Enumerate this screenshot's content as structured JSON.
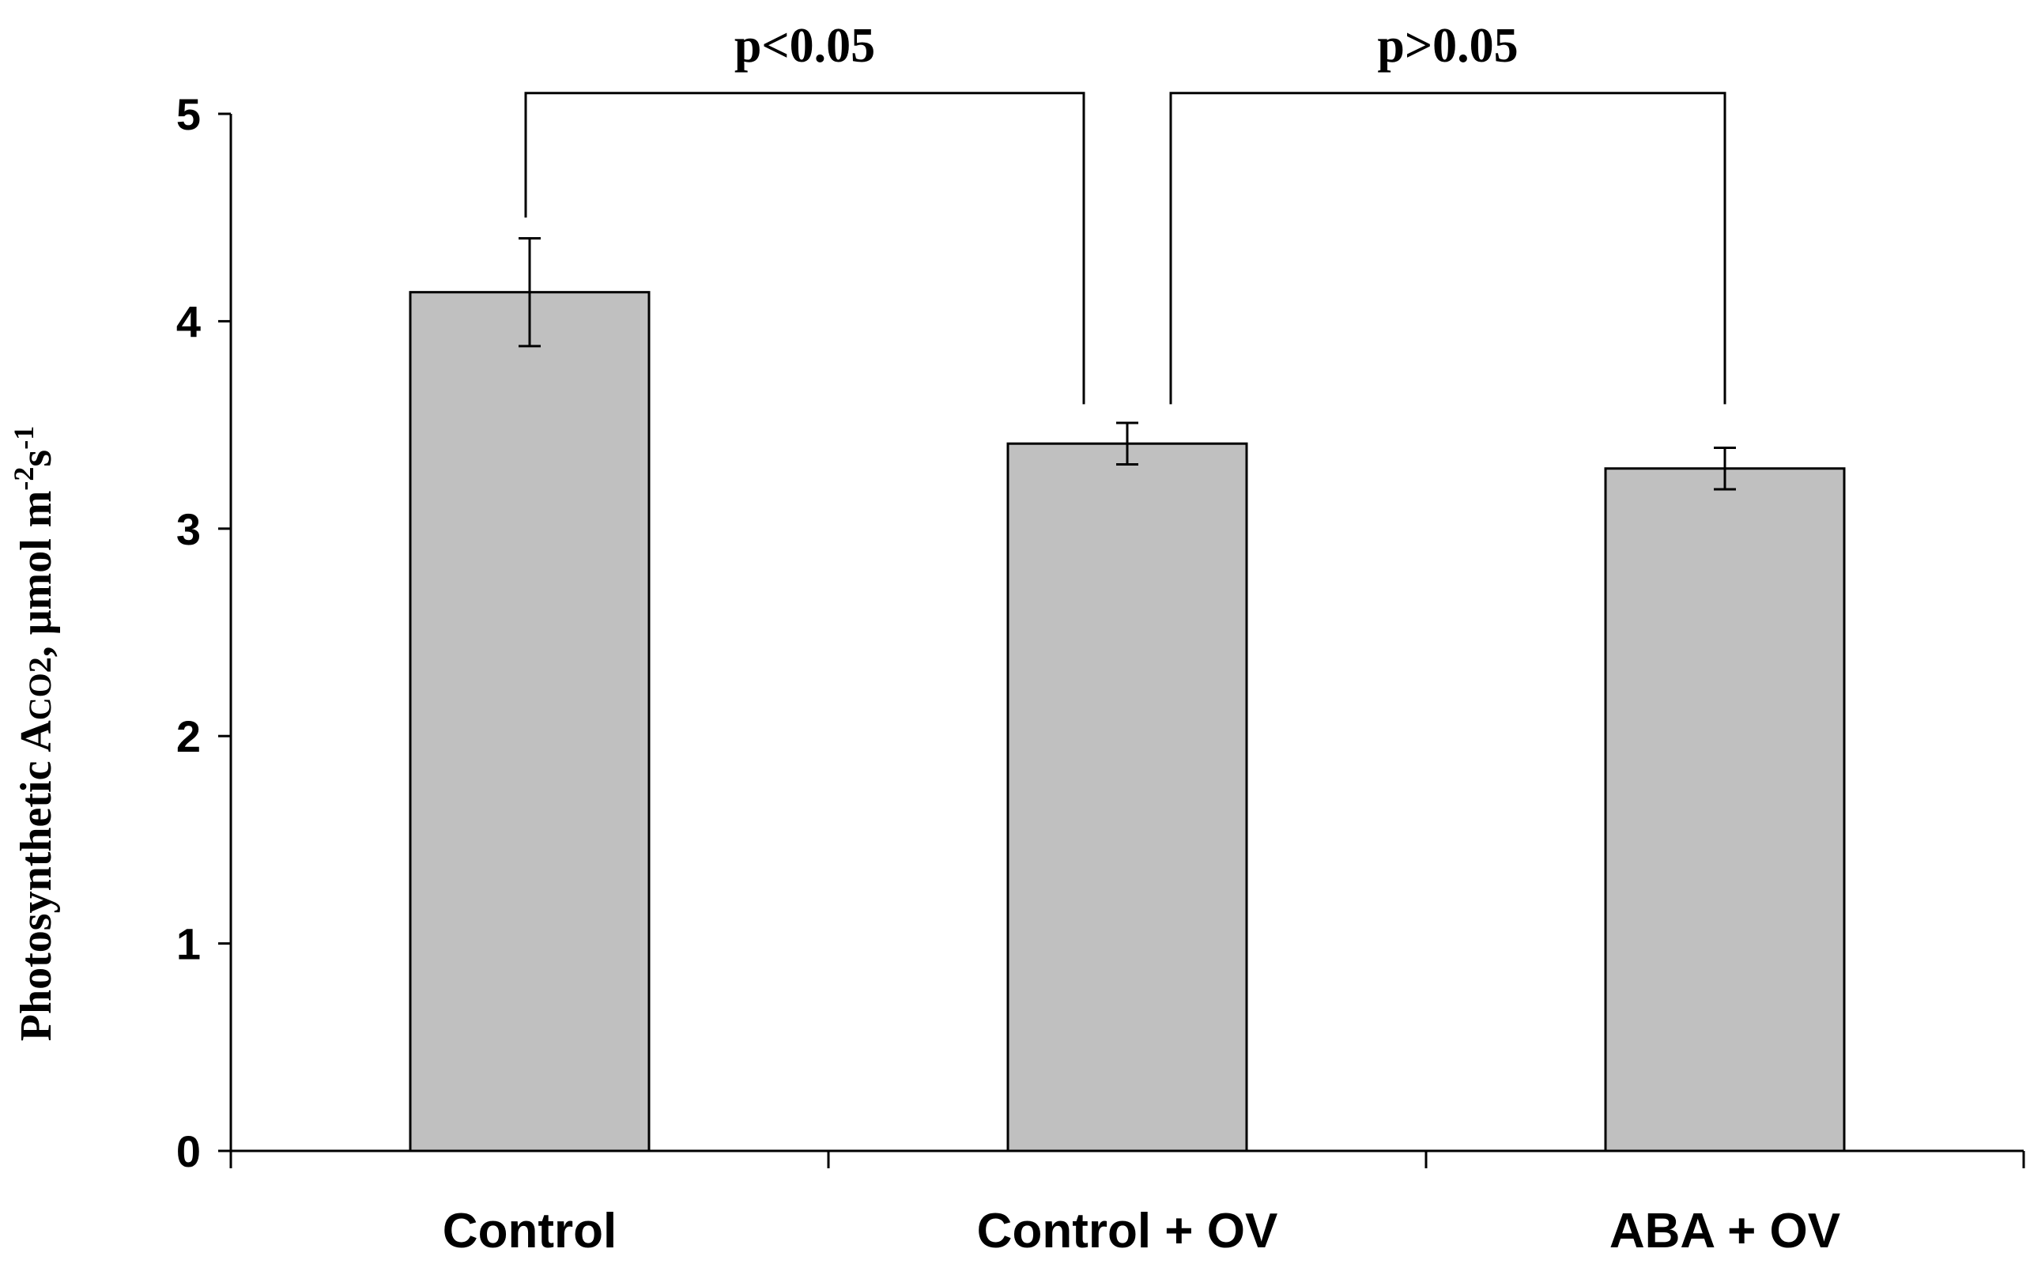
{
  "chart_data": {
    "type": "bar",
    "title": "",
    "xlabel": "",
    "ylabel": {
      "prefix": "Photosynthetic A",
      "subscript": "CO2",
      "unit_prefix": ", μmol m",
      "sup1": "-2",
      "unit_mid": "s",
      "sup2": "-1"
    },
    "categories": [
      "Control",
      "Control + OV",
      "ABA + OV"
    ],
    "values": [
      4.14,
      3.41,
      3.29
    ],
    "errors": [
      0.26,
      0.1,
      0.1
    ],
    "ylim": [
      0,
      5
    ],
    "yticks": [
      0,
      1,
      2,
      3,
      4,
      5
    ],
    "ytick_labels": [
      "0",
      "1",
      "2",
      "3",
      "4",
      "5"
    ],
    "bar_color": "#c0c0c0",
    "edge_color": "#000000",
    "significance": [
      {
        "from": 0,
        "to": 1,
        "label": "p<0.05",
        "y": 5.1,
        "from_y": 4.5,
        "to_y": 3.6
      },
      {
        "from": 1,
        "to": 2,
        "label": "p>0.05",
        "y": 5.1,
        "from_y": 3.6,
        "to_y": 3.6
      }
    ]
  }
}
